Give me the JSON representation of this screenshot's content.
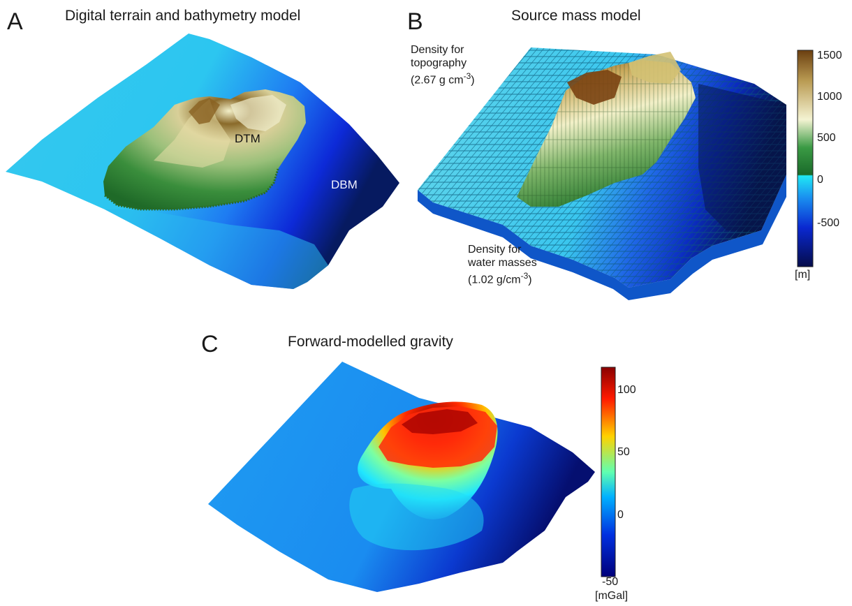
{
  "panels": {
    "a": {
      "letter": "A",
      "title": "Digital terrain and bathymetry model",
      "labels": {
        "dtm": "DTM",
        "dbm": "DBM"
      }
    },
    "b": {
      "letter": "B",
      "title": "Source mass model",
      "topo_note": {
        "line1": "Density  for",
        "line2": "topography",
        "line3_pre": "(2.67  g cm",
        "line3_sup": "-3",
        "line3_post": ")"
      },
      "water_note": {
        "line1": "Density for",
        "line2": "water masses",
        "line3_pre": "(1.02 g/cm",
        "line3_sup": "-3",
        "line3_post": ")"
      },
      "colorbar": {
        "ticks": [
          "1500",
          "1000",
          "500",
          "0",
          "-500"
        ],
        "unit": "[m]",
        "colors": [
          "#7a4a12",
          "#c9b56a",
          "#f2f2cc",
          "#2f8f3a",
          "#20e0f0",
          "#1030d0",
          "#081050"
        ]
      }
    },
    "c": {
      "letter": "C",
      "title": "Forward-modelled gravity",
      "colorbar": {
        "ticks": [
          "100",
          "50",
          "0",
          "-50"
        ],
        "unit": "[mGal]",
        "colors": [
          "#8a0000",
          "#ff2000",
          "#ffd000",
          "#40ffb0",
          "#00a0ff",
          "#0010c0",
          "#000080"
        ]
      }
    }
  }
}
